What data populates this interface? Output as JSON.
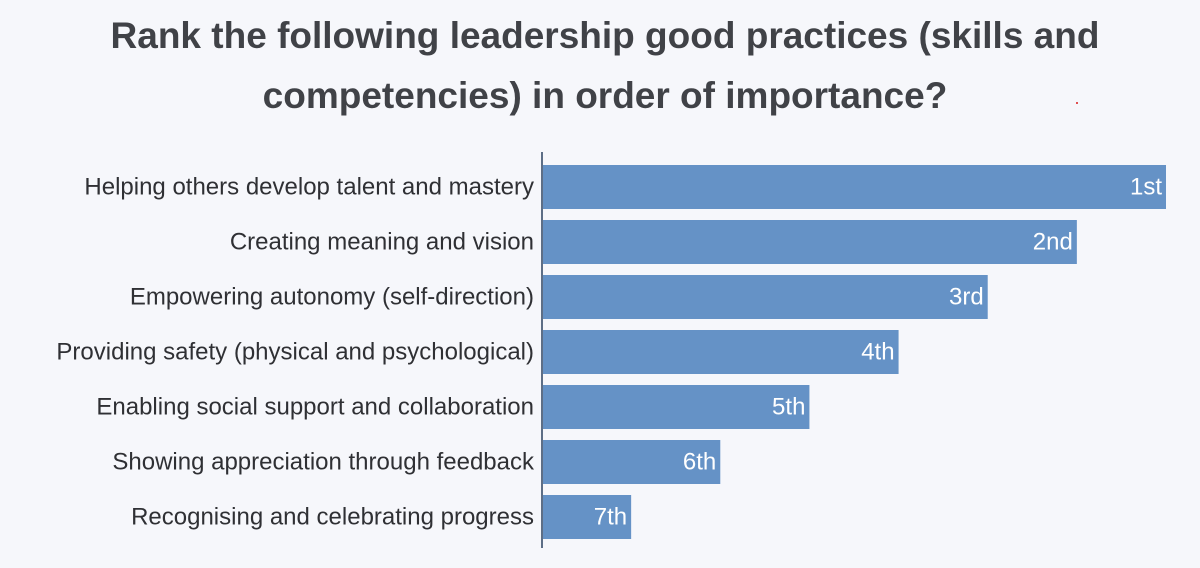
{
  "title": "Rank the following leadership good practices (skills and competencies) in order of importance?",
  "colors": {
    "bar": "#6592c6",
    "background": "#f6f7fb",
    "title": "#404247",
    "axis": "#5d6e86",
    "label_inside": "#ffffff",
    "label_outside": "#2f3034"
  },
  "chart_data": {
    "type": "bar",
    "orientation": "horizontal",
    "title": "Rank the following leadership good practices (skills and competencies) in order of importance?",
    "xlabel": "",
    "ylabel": "",
    "grid": false,
    "legend": "none",
    "xlim": [
      0,
      7
    ],
    "categories": [
      "Helping others develop talent and mastery",
      "Creating meaning and vision",
      "Empowering autonomy (self-direction)",
      "Providing safety (physical and psychological)",
      "Enabling social support and collaboration",
      "Showing appreciation through feedback",
      "Recognising and celebrating progress"
    ],
    "values": [
      7,
      6,
      5,
      4,
      3,
      2,
      1
    ],
    "data_labels": [
      "1st",
      "2nd",
      "3rd",
      "4th",
      "5th",
      "6th",
      "7th"
    ]
  }
}
